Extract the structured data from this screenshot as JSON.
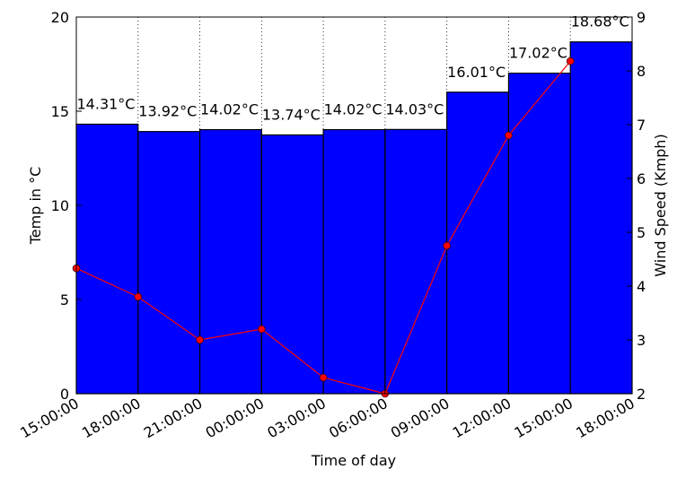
{
  "chart_data": {
    "type": "bar",
    "xlabel": "Time of day",
    "ylabel": "Temp in °C",
    "y2label": "Wind Speed (Kmph)",
    "ylim": [
      0,
      20
    ],
    "y2lim": [
      2,
      9
    ],
    "yticks": [
      "0",
      "5",
      "10",
      "15",
      "20"
    ],
    "y2ticks": [
      "2",
      "3",
      "4",
      "5",
      "6",
      "7",
      "8",
      "9"
    ],
    "xticks": [
      "15:00:00",
      "18:00:00",
      "21:00:00",
      "00:00:00",
      "03:00:00",
      "06:00:00",
      "09:00:00",
      "12:00:00",
      "15:00:00",
      "18:00:00"
    ],
    "grid": "vertical dotted",
    "bar_color": "#0000ff",
    "line_color": "#ff0000",
    "series": [
      {
        "type": "bar",
        "axis": "left",
        "values": [
          14.31,
          13.92,
          14.02,
          13.74,
          14.02,
          14.03,
          16.01,
          17.02,
          18.68
        ],
        "labels": [
          "14.31°C",
          "13.92°C",
          "14.02°C",
          "13.74°C",
          "14.02°C",
          "14.03°C",
          "16.01°C",
          "17.02°C",
          "18.68°C"
        ]
      },
      {
        "type": "line",
        "axis": "right",
        "values": [
          4.33,
          3.8,
          3.0,
          3.2,
          2.3,
          2.0,
          4.75,
          6.8,
          8.18
        ]
      }
    ]
  }
}
